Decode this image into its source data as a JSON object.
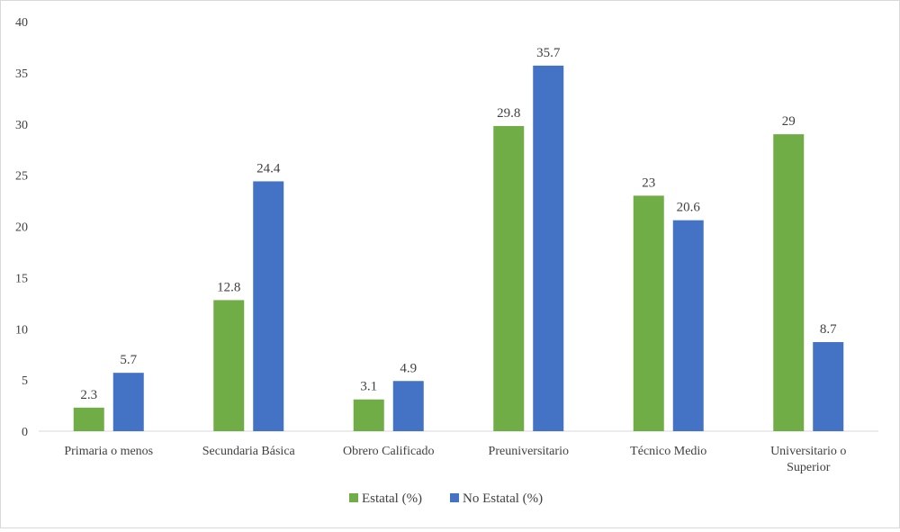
{
  "chart_data": {
    "type": "bar",
    "categories": [
      "Primaria o menos",
      "Secundaria Básica",
      "Obrero Calificado",
      "Preuniversitario",
      "Técnico Medio",
      [
        "Universitario o",
        "Superior"
      ]
    ],
    "series": [
      {
        "name": "Estatal (%)",
        "color": "#70ad47",
        "values": [
          2.3,
          12.8,
          3.1,
          29.8,
          23,
          29
        ]
      },
      {
        "name": "No Estatal (%)",
        "color": "#4472c4",
        "values": [
          5.7,
          24.4,
          4.9,
          35.7,
          20.6,
          8.7
        ]
      }
    ],
    "ylim": [
      0,
      40
    ],
    "yticks": [
      0,
      5,
      10,
      15,
      20,
      25,
      30,
      35,
      40
    ],
    "grid": false,
    "legend_position": "bottom",
    "data_labels": true
  }
}
